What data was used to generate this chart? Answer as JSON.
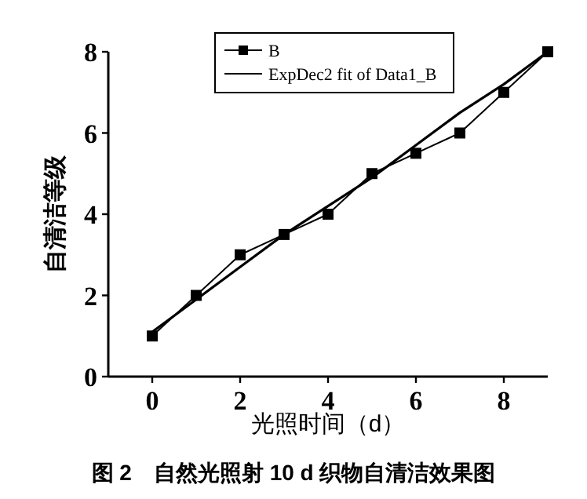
{
  "chart_data": {
    "type": "line",
    "title": "图 2　自然光照射 10 d 织物自清洁效果图",
    "xlabel": "光照时间（d）",
    "ylabel": "自清洁等级",
    "xlim": [
      -1,
      9
    ],
    "xticks": [
      0,
      2,
      4,
      6,
      8
    ],
    "ylim": [
      0,
      8
    ],
    "yticks": [
      0,
      2,
      4,
      6,
      8
    ],
    "grid": false,
    "legend": "top right",
    "series": [
      {
        "name": "B",
        "color": "#000000",
        "marker": "square",
        "x": [
          0,
          1,
          2,
          3,
          4,
          5,
          6,
          7,
          8,
          9
        ],
        "values": [
          1,
          2,
          3,
          3.5,
          4,
          5,
          5.5,
          6,
          7,
          8
        ]
      },
      {
        "name": "ExpDec2 fit of Data1_B",
        "color": "#000000",
        "marker": "none",
        "x": [
          0,
          1,
          2,
          3,
          4,
          5,
          6,
          7,
          8,
          9
        ],
        "values": [
          1.1,
          1.9,
          2.7,
          3.5,
          4.2,
          4.9,
          5.7,
          6.5,
          7.2,
          8.0
        ]
      }
    ]
  }
}
